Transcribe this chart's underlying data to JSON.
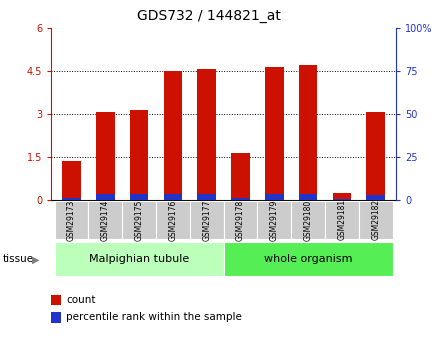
{
  "title": "GDS732 / 144821_at",
  "categories": [
    "GSM29173",
    "GSM29174",
    "GSM29175",
    "GSM29176",
    "GSM29177",
    "GSM29178",
    "GSM29179",
    "GSM29180",
    "GSM29181",
    "GSM29182"
  ],
  "count_values": [
    1.35,
    3.05,
    3.15,
    4.48,
    4.57,
    1.65,
    4.62,
    4.7,
    0.25,
    3.06
  ],
  "percentile_values": [
    0.08,
    0.22,
    0.22,
    0.22,
    0.22,
    0.08,
    0.22,
    0.22,
    0.05,
    0.18
  ],
  "bar_color_red": "#CC1100",
  "bar_color_blue": "#2233CC",
  "ylim_left": [
    0,
    6
  ],
  "ylim_right": [
    0,
    100
  ],
  "yticks_left": [
    0,
    1.5,
    3.0,
    4.5,
    6.0
  ],
  "ytick_labels_left": [
    "0",
    "1.5",
    "3",
    "4.5",
    "6"
  ],
  "yticks_right": [
    0,
    25,
    50,
    75,
    100
  ],
  "ytick_labels_right": [
    "0",
    "25",
    "50",
    "75",
    "100%"
  ],
  "tissue_groups": [
    {
      "label": "Malpighian tubule",
      "start": 0,
      "end": 5,
      "color": "#bbffbb"
    },
    {
      "label": "whole organism",
      "start": 5,
      "end": 10,
      "color": "#55ee55"
    }
  ],
  "tissue_label": "tissue",
  "legend_items": [
    {
      "label": "count",
      "color": "#CC1100"
    },
    {
      "label": "percentile rank within the sample",
      "color": "#2233CC"
    }
  ],
  "bar_width": 0.55,
  "grid_color": "black",
  "background_color": "#ffffff",
  "tick_label_fontsize": 7,
  "title_fontsize": 10
}
